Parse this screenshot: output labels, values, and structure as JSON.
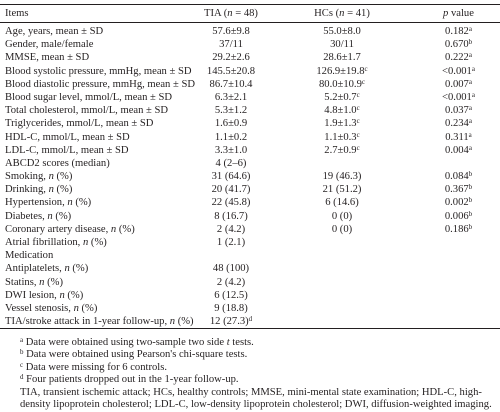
{
  "table": {
    "header": {
      "items": "Items",
      "tia": "TIA (n = 48)",
      "hcs": "HCs (n = 41)",
      "p": "p value"
    },
    "rows": [
      {
        "item": "Age, years, mean ± SD",
        "tia": "57.6±9.8",
        "hcs": "55.0±8.0",
        "p": "0.182",
        "p_sup": "a"
      },
      {
        "item": "Gender, male/female",
        "tia": "37/11",
        "hcs": "30/11",
        "p": "0.670",
        "p_sup": "b"
      },
      {
        "item": "MMSE, mean ± SD",
        "tia": "29.2±2.6",
        "hcs": "28.6±1.7",
        "p": "0.222",
        "p_sup": "a"
      },
      {
        "item": "Blood systolic pressure, mmHg, mean ± SD",
        "tia": "145.5±20.8",
        "hcs": "126.9±19.8",
        "hcs_sup": "c",
        "p": "<0.001",
        "p_sup": "a"
      },
      {
        "item": "Blood diastolic pressure, mmHg, mean ± SD",
        "tia": "86.7±10.4",
        "hcs": "80.0±10.9",
        "hcs_sup": "c",
        "p": "0.007",
        "p_sup": "a"
      },
      {
        "item": "Blood sugar level, mmol/L, mean ± SD",
        "tia": "6.3±2.1",
        "hcs": "5.2±0.7",
        "hcs_sup": "c",
        "p": "<0.001",
        "p_sup": "a"
      },
      {
        "item": "Total cholesterol, mmol/L, mean ± SD",
        "tia": "5.3±1.2",
        "hcs": "4.8±1.0",
        "hcs_sup": "c",
        "p": "0.037",
        "p_sup": "a"
      },
      {
        "item": "Triglycerides, mmol/L, mean ± SD",
        "tia": "1.6±0.9",
        "hcs": "1.9±1.3",
        "hcs_sup": "c",
        "p": "0.234",
        "p_sup": "a"
      },
      {
        "item": "HDL-C, mmol/L, mean ± SD",
        "tia": "1.1±0.2",
        "hcs": "1.1±0.3",
        "hcs_sup": "c",
        "p": "0.311",
        "p_sup": "a"
      },
      {
        "item": "LDL-C, mmol/L, mean ± SD",
        "tia": "3.3±1.0",
        "hcs": "2.7±0.9",
        "hcs_sup": "c",
        "p": "0.004",
        "p_sup": "a"
      },
      {
        "item": "ABCD2 scores (median)",
        "tia": "4 (2–6)"
      },
      {
        "item": "Smoking, n (%)",
        "tia": "31 (64.6)",
        "hcs": "19 (46.3)",
        "p": "0.084",
        "p_sup": "b"
      },
      {
        "item": "Drinking, n (%)",
        "tia": "20 (41.7)",
        "hcs": "21 (51.2)",
        "p": "0.367",
        "p_sup": "b"
      },
      {
        "item": "Hypertension, n (%)",
        "tia": "22 (45.8)",
        "hcs": "6 (14.6)",
        "p": "0.002",
        "p_sup": "b"
      },
      {
        "item": "Diabetes, n (%)",
        "tia": "8 (16.7)",
        "hcs": "0 (0)",
        "p": "0.006",
        "p_sup": "b"
      },
      {
        "item": "Coronary artery disease, n (%)",
        "tia": "2 (4.2)",
        "hcs": "0 (0)",
        "p": "0.186",
        "p_sup": "b"
      },
      {
        "item": "Atrial fibrillation, n (%)",
        "tia": "1 (2.1)"
      },
      {
        "item": "Medication"
      },
      {
        "item": "Antiplatelets, n (%)",
        "tia": "48 (100)"
      },
      {
        "item": "Statins, n (%)",
        "tia": "2 (4.2)"
      },
      {
        "item": "DWI lesion, n (%)",
        "tia": "6 (12.5)"
      },
      {
        "item": "Vessel stenosis, n (%)",
        "tia": "9 (18.8)"
      },
      {
        "item": "TIA/stroke attack in 1-year follow-up, n (%)",
        "tia": "12 (27.3)",
        "tia_sup": "d"
      }
    ],
    "footnotes": [
      {
        "mark": "a",
        "text": "Data were obtained using two-sample two side t tests."
      },
      {
        "mark": "b",
        "text": "Data were obtained using Pearson's chi-square tests."
      },
      {
        "mark": "c",
        "text": "Data were missing for 6 controls."
      },
      {
        "mark": "d",
        "text": "Four patients dropped out in the 1-year follow-up."
      }
    ],
    "abbreviations": "TIA, transient ischemic attack; HCs, healthy controls; MMSE, mini-mental state examination; HDL-C, high-density lipoprotein cholesterol; LDL-C, low-density lipoprotein cholesterol; DWI, diffusion-weighted imaging."
  }
}
